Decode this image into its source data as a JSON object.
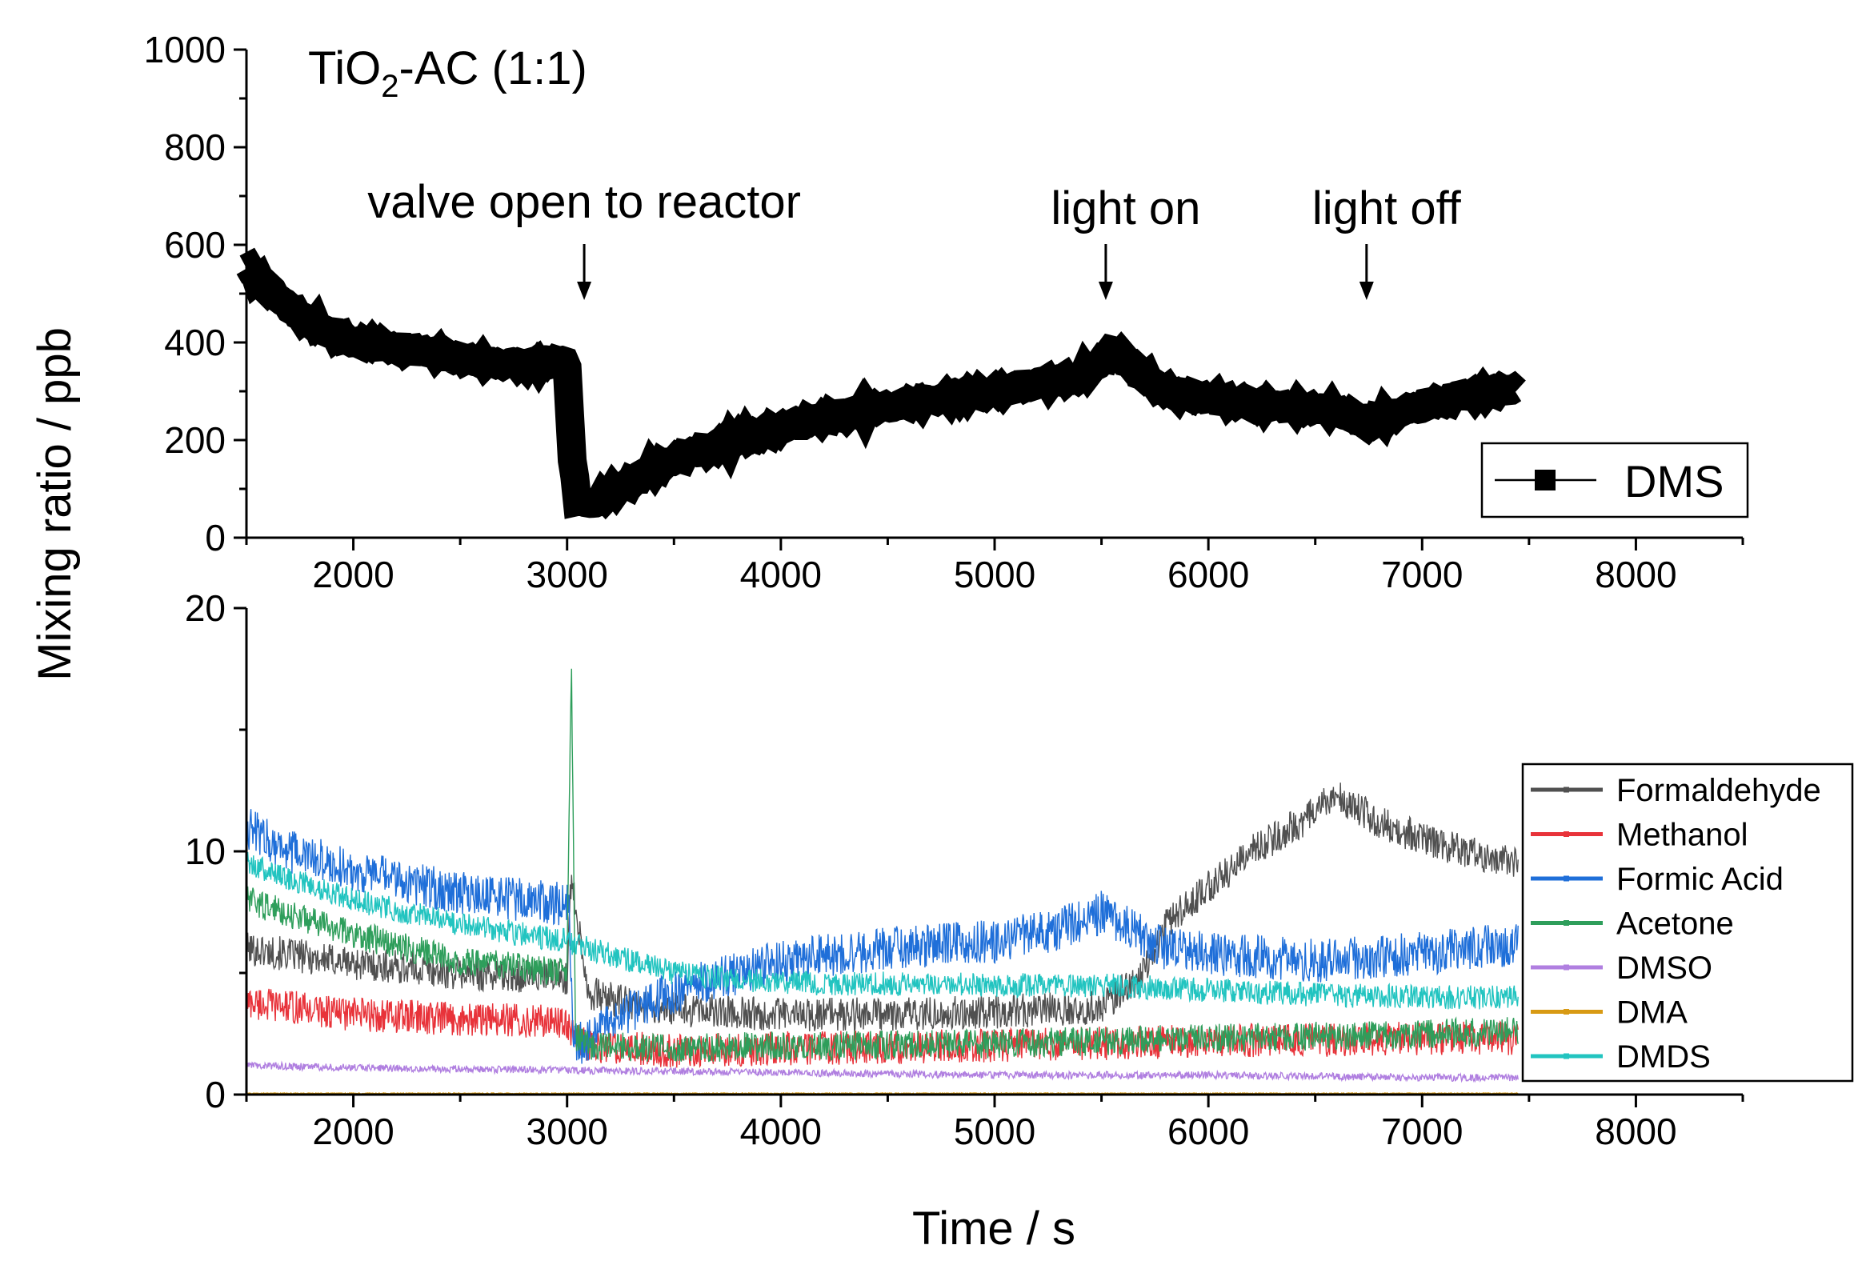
{
  "figure": {
    "ylabel": "Mixing ratio / ppb",
    "xlabel": "Time / s",
    "sample_label": {
      "main": "TiO",
      "sub": "2",
      "rest": "-AC (1:1)"
    }
  },
  "chart_data": [
    {
      "type": "line",
      "panel": "top",
      "xlim": [
        1500,
        8500
      ],
      "ylim": [
        0,
        1000
      ],
      "xticks": [
        2000,
        3000,
        4000,
        5000,
        6000,
        7000,
        8000
      ],
      "yticks": [
        0,
        200,
        400,
        600,
        800,
        1000
      ],
      "xtick_labels": [
        "2000",
        "3000",
        "4000",
        "5000",
        "6000",
        "7000",
        "8000"
      ],
      "ytick_labels": [
        "0",
        "200",
        "400",
        "600",
        "800",
        "1000"
      ],
      "legend": "bottom-right",
      "annotations": [
        {
          "text": "valve open to reactor",
          "x": 3080
        },
        {
          "text": "light on",
          "x": 5520
        },
        {
          "text": "light off",
          "x": 6740
        }
      ],
      "series": [
        {
          "name": "DMS",
          "color": "#000000",
          "x": [
            1500,
            1600,
            1700,
            1800,
            1900,
            2000,
            2200,
            2400,
            2600,
            2800,
            2950,
            3000,
            3020,
            3050,
            3100,
            3200,
            3300,
            3400,
            3500,
            3600,
            3800,
            4000,
            4200,
            4400,
            4600,
            4800,
            5000,
            5200,
            5400,
            5500,
            5550,
            5600,
            5700,
            5800,
            6000,
            6200,
            6400,
            6600,
            6700,
            6750,
            6800,
            6900,
            7000,
            7100,
            7200,
            7300,
            7400,
            7450
          ],
          "values": [
            555,
            510,
            470,
            440,
            420,
            400,
            390,
            375,
            360,
            355,
            360,
            355,
            175,
            70,
            70,
            90,
            115,
            140,
            160,
            175,
            200,
            225,
            245,
            260,
            275,
            290,
            300,
            315,
            330,
            360,
            385,
            370,
            330,
            300,
            285,
            275,
            268,
            262,
            245,
            230,
            245,
            255,
            270,
            280,
            290,
            297,
            302,
            305
          ]
        }
      ]
    },
    {
      "type": "line",
      "panel": "bottom",
      "xlim": [
        1500,
        8500
      ],
      "ylim": [
        0,
        20
      ],
      "xticks": [
        2000,
        3000,
        4000,
        5000,
        6000,
        7000,
        8000
      ],
      "yticks": [
        0,
        10,
        20
      ],
      "xtick_labels": [
        "2000",
        "3000",
        "4000",
        "5000",
        "6000",
        "7000",
        "8000"
      ],
      "ytick_labels": [
        "0",
        "10",
        "20"
      ],
      "legend": "right",
      "series": [
        {
          "name": "Formaldehyde",
          "color": "#505050",
          "noise": 0.7,
          "x": [
            1500,
            2000,
            2500,
            3000,
            3020,
            3100,
            3300,
            3500,
            4000,
            4500,
            5000,
            5500,
            5700,
            5800,
            6000,
            6200,
            6400,
            6600,
            6800,
            7000,
            7200,
            7400,
            7450
          ],
          "values": [
            6.0,
            5.4,
            5.0,
            4.8,
            9.0,
            4.2,
            3.7,
            3.5,
            3.3,
            3.3,
            3.4,
            3.6,
            5.0,
            7.0,
            8.5,
            10.0,
            11.0,
            12.3,
            11.2,
            10.5,
            10.0,
            9.6,
            9.5
          ]
        },
        {
          "name": "Methanol",
          "color": "#e8333a",
          "noise": 0.7,
          "x": [
            1500,
            2000,
            2500,
            3000,
            3020,
            3100,
            3500,
            4000,
            5000,
            6000,
            7000,
            7450
          ],
          "values": [
            3.8,
            3.3,
            3.1,
            3.0,
            2.5,
            2.0,
            1.8,
            1.9,
            2.0,
            2.2,
            2.3,
            2.3
          ]
        },
        {
          "name": "Formic Acid",
          "color": "#1f6fd9",
          "noise": 0.9,
          "x": [
            1500,
            1700,
            2000,
            2500,
            3000,
            3010,
            3030,
            3100,
            3300,
            3600,
            4000,
            4500,
            5000,
            5300,
            5500,
            5650,
            5800,
            6000,
            6500,
            7000,
            7450
          ],
          "values": [
            11.0,
            10.0,
            9.2,
            8.3,
            7.8,
            7.5,
            2.0,
            2.2,
            3.5,
            4.5,
            5.5,
            6.0,
            6.3,
            6.8,
            7.5,
            6.8,
            6.0,
            5.8,
            5.5,
            5.8,
            6.2
          ]
        },
        {
          "name": "Acetone",
          "color": "#2e9e5b",
          "noise": 0.6,
          "x": [
            1500,
            2000,
            2500,
            3000,
            3020,
            3040,
            3100,
            3500,
            4000,
            5000,
            6000,
            7000,
            7450
          ],
          "values": [
            8.0,
            6.6,
            5.5,
            5.0,
            18.0,
            2.4,
            2.0,
            1.9,
            2.0,
            2.1,
            2.3,
            2.5,
            2.6
          ]
        },
        {
          "name": "DMSO",
          "color": "#b07fe0",
          "noise": 0.15,
          "x": [
            1500,
            2000,
            3000,
            4000,
            5000,
            6000,
            7000,
            7450
          ],
          "values": [
            1.2,
            1.1,
            1.0,
            0.9,
            0.8,
            0.8,
            0.7,
            0.7
          ]
        },
        {
          "name": "DMA",
          "color": "#d89a14",
          "noise": 0.02,
          "x": [
            1500,
            7450
          ],
          "values": [
            0.05,
            0.05
          ]
        },
        {
          "name": "DMDS",
          "color": "#22c4c0",
          "noise": 0.5,
          "x": [
            1500,
            2000,
            2500,
            3000,
            3100,
            3500,
            4000,
            5000,
            5500,
            6000,
            6500,
            7000,
            7450
          ],
          "values": [
            9.5,
            8.0,
            7.0,
            6.3,
            6.0,
            5.0,
            4.6,
            4.5,
            4.5,
            4.3,
            4.1,
            4.0,
            4.0
          ]
        }
      ]
    }
  ]
}
